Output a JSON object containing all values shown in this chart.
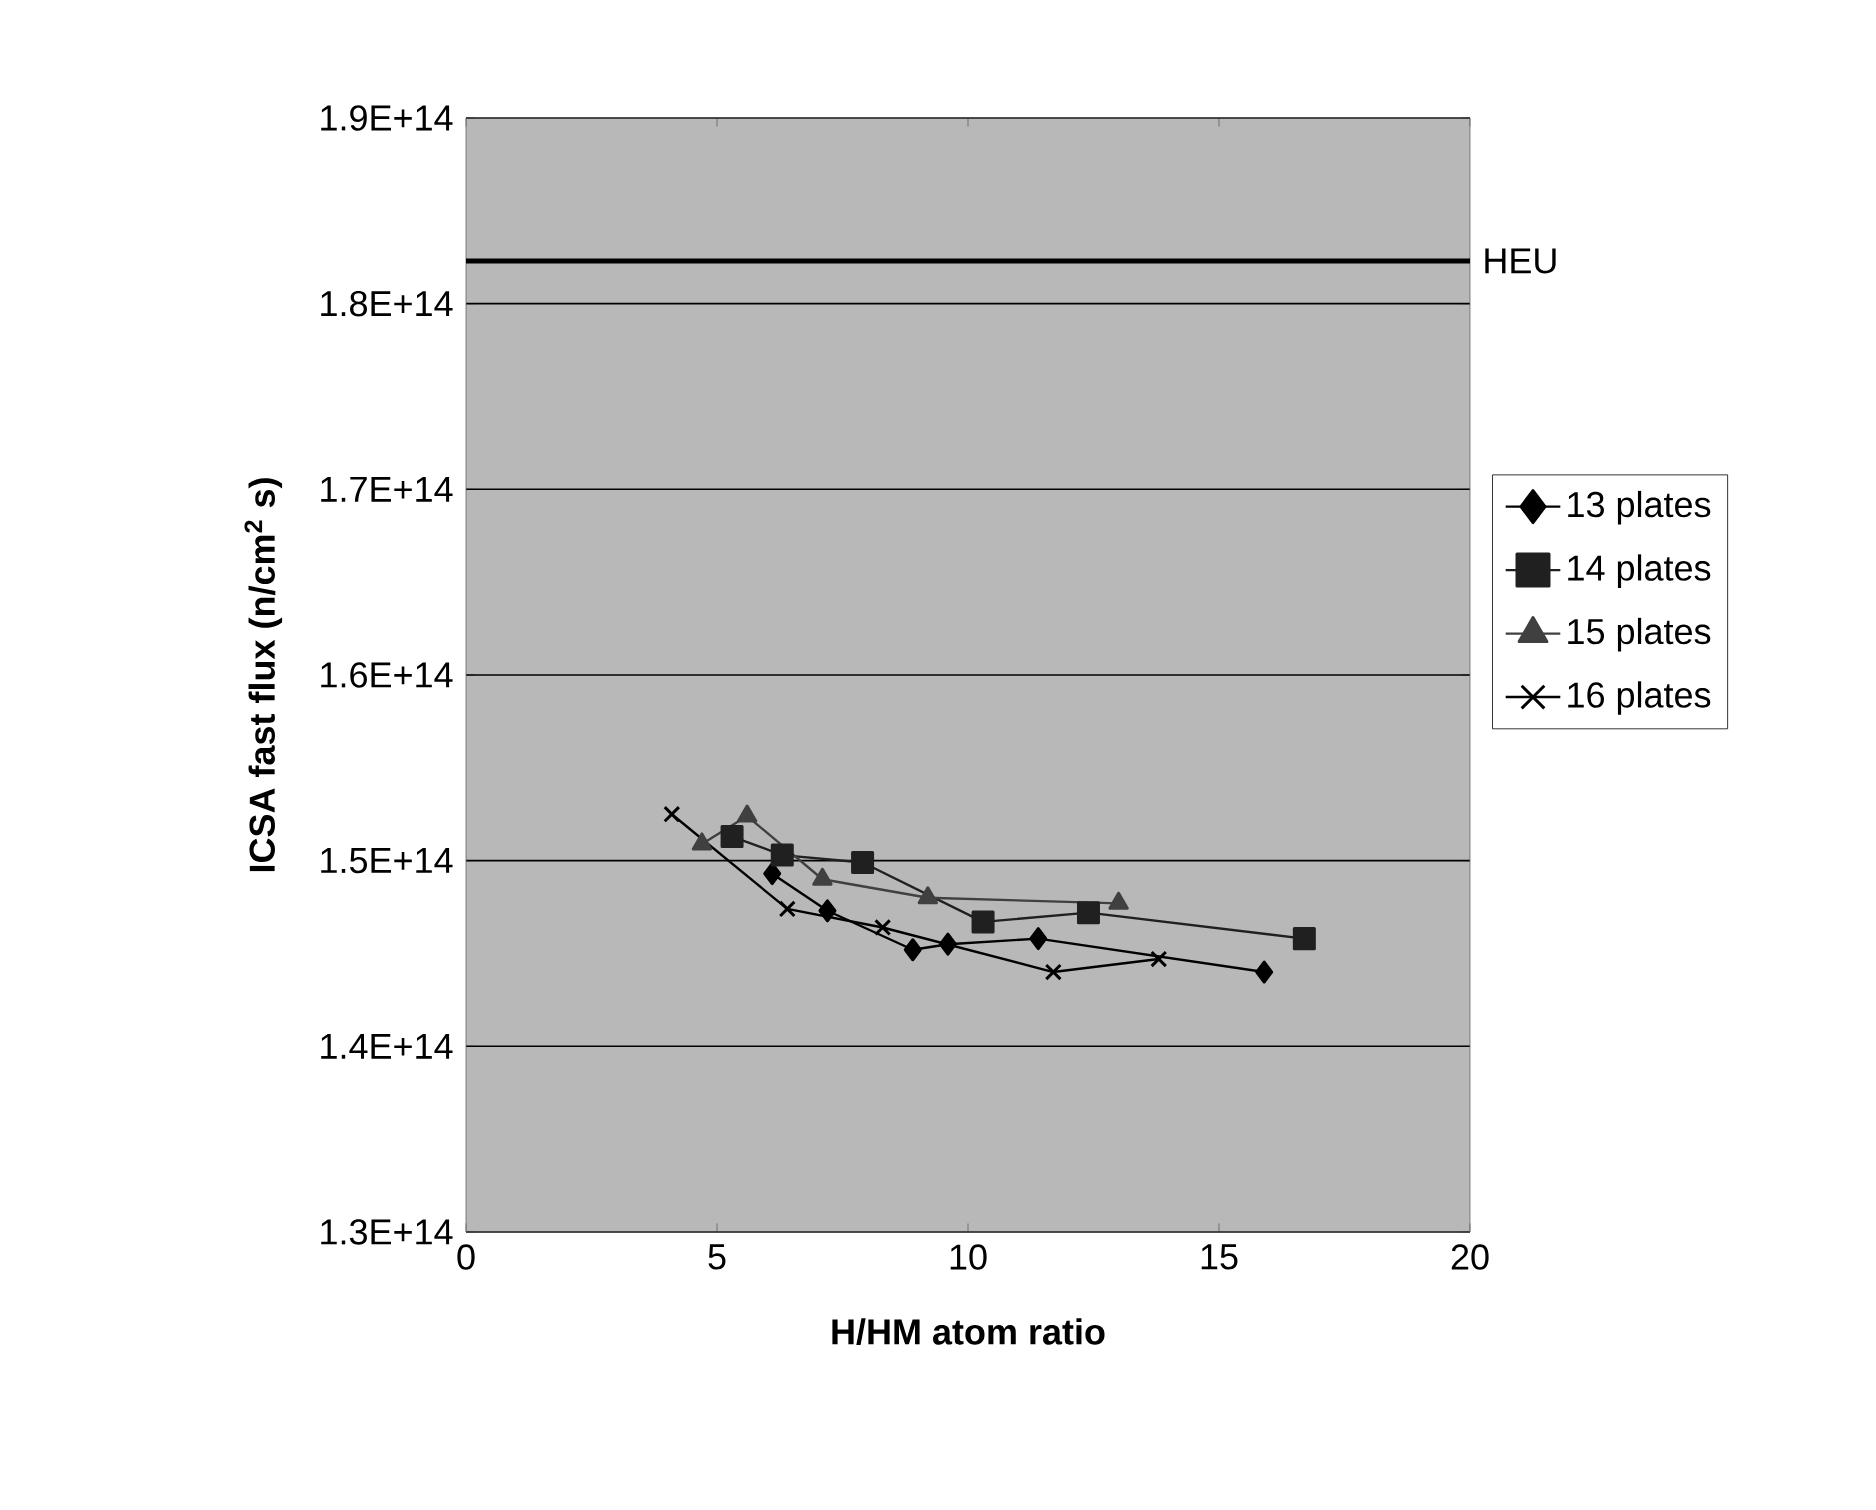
{
  "chart_data": {
    "type": "line",
    "xlabel": "H/HM atom ratio",
    "ylabel": "ICSA fast flux (n/cm$^{2}$ s)",
    "xlim": [
      0,
      20
    ],
    "xticks": [
      0,
      5,
      10,
      15,
      20
    ],
    "ylim": [
      130000000000000.0,
      190000000000000.0
    ],
    "yticks": [
      {
        "value": 130000000000000.0,
        "label": "1.3E+14"
      },
      {
        "value": 140000000000000.0,
        "label": "1.4E+14"
      },
      {
        "value": 150000000000000.0,
        "label": "1.5E+14"
      },
      {
        "value": 160000000000000.0,
        "label": "1.6E+14"
      },
      {
        "value": 170000000000000.0,
        "label": "1.7E+14"
      },
      {
        "value": 180000000000000.0,
        "label": "1.8E+14"
      },
      {
        "value": 190000000000000.0,
        "label": "1.9E+14"
      }
    ],
    "grid": "y",
    "legend": "right",
    "line_style": "solid",
    "ref_lines": [
      {
        "axis": "y",
        "value": 182300000000000.0,
        "label": "HEU",
        "color": "#000000"
      }
    ],
    "series": [
      {
        "name": "13 plates",
        "color": "#000000",
        "marker": "diamond",
        "x": [
          6.1,
          7.2,
          8.9,
          9.6,
          11.4,
          15.9
        ],
        "values": [
          149300000000000.0,
          147300000000000.0,
          145200000000000.0,
          145500000000000.0,
          145800000000000.0,
          144000000000000.0
        ]
      },
      {
        "name": "14 plates",
        "color": "#202020",
        "marker": "square",
        "x": [
          5.3,
          6.3,
          7.9,
          10.3,
          12.4,
          16.7
        ],
        "values": [
          151300000000000.0,
          150300000000000.0,
          149900000000000.0,
          146700000000000.0,
          147200000000000.0,
          145800000000000.0
        ]
      },
      {
        "name": "15 plates",
        "color": "#404040",
        "marker": "triangle",
        "x": [
          4.7,
          5.6,
          7.1,
          9.2,
          13.0
        ],
        "values": [
          150900000000000.0,
          152400000000000.0,
          149000000000000.0,
          148000000000000.0,
          147700000000000.0
        ]
      },
      {
        "name": "16 plates",
        "color": "#000000",
        "marker": "cross",
        "x": [
          4.1,
          6.4,
          8.3,
          11.7,
          13.8
        ],
        "values": [
          152500000000000.0,
          147400000000000.0,
          146400000000000.0,
          144000000000000.0,
          144700000000000.0
        ]
      }
    ]
  }
}
